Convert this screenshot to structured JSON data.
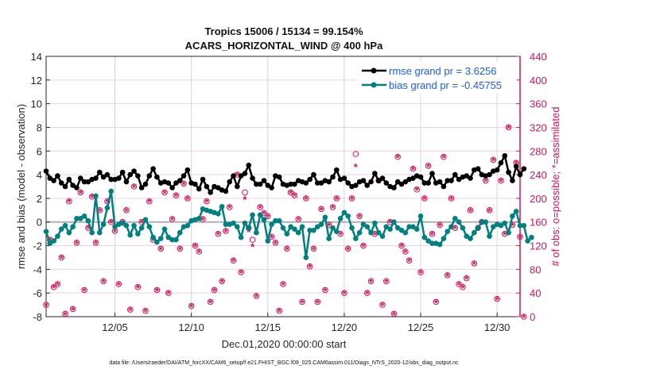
{
  "chart_data": {
    "type": "line",
    "title": [
      "Tropics 15006 / 15134 = 99.154%",
      "ACARS_HORIZONTAL_WIND @ 400 hPa"
    ],
    "xlabel": "Dec.01,2020 00:00:00 start",
    "ylabel": "rmse and bias (model - observation)",
    "y2label": "# of obs: o=possible; *=assimilated",
    "footnote": "data file: /Users/raeder/DAI/ATM_forcXX/CAM6_setup/f.e21.FHIST_BGC.f09_025.CAM6assim.011/Diags_NTrS_2020-12/obs_diag_output.nc",
    "xlim_days": [
      0,
      31
    ],
    "x_start_day": 0,
    "x_step_days": 0.25,
    "xticks": [
      {
        "day": 4.5,
        "label": "12/05"
      },
      {
        "day": 9.5,
        "label": "12/10"
      },
      {
        "day": 14.5,
        "label": "12/15"
      },
      {
        "day": 19.5,
        "label": "12/20"
      },
      {
        "day": 24.5,
        "label": "12/25"
      },
      {
        "day": 29.5,
        "label": "12/30"
      }
    ],
    "ylim": [
      -8,
      14
    ],
    "yticks": [
      -8,
      -6,
      -4,
      -2,
      0,
      2,
      4,
      6,
      8,
      10,
      12,
      14
    ],
    "y2lim": [
      0,
      440
    ],
    "y2ticks": [
      0,
      40,
      80,
      120,
      160,
      200,
      240,
      280,
      320,
      360,
      400,
      440
    ],
    "grid": true,
    "legend_placement": "top-right",
    "colors": {
      "rmse": "#000000",
      "bias": "#008080",
      "obs": "#d4145a",
      "legend_text": "#1a5cff",
      "zero_line": "#b0b0b0"
    },
    "series": [
      {
        "name": "rmse grand pr = 3.6256",
        "values": [
          4.3,
          3.7,
          3.5,
          3.9,
          3.3,
          3.0,
          3.6,
          3.1,
          2.9,
          3.7,
          3.4,
          3.4,
          3.6,
          3.7,
          4.2,
          3.8,
          4.0,
          3.6,
          3.6,
          3.7,
          4.2,
          3.4,
          4.0,
          4.3,
          3.9,
          2.9,
          3.2,
          3.9,
          4.5,
          3.8,
          3.3,
          3.4,
          3.3,
          2.9,
          3.3,
          3.5,
          3.9,
          4.4,
          3.3,
          3.2,
          2.8,
          3.6,
          3.0,
          2.5,
          3.0,
          2.9,
          2.7,
          2.6,
          3.4,
          3.9,
          3.0,
          3.9,
          4.1,
          4.8,
          3.7,
          3.2,
          3.2,
          3.5,
          3.1,
          2.9,
          3.9,
          3.8,
          3.2,
          3.1,
          3.2,
          3.2,
          3.5,
          3.4,
          3.3,
          3.6,
          4.0,
          3.3,
          3.3,
          3.5,
          3.4,
          3.8,
          4.4,
          3.6,
          3.7,
          3.3,
          3.0,
          3.1,
          3.4,
          3.5,
          3.1,
          3.4,
          4.1,
          3.5,
          3.7,
          3.3,
          3.0,
          2.9,
          3.4,
          3.2,
          3.4,
          3.6,
          3.7,
          3.9,
          3.8,
          3.3,
          3.3,
          4.1,
          3.3,
          3.4,
          3.0,
          3.5,
          3.5,
          4.0,
          3.6,
          3.8,
          3.9,
          3.7,
          4.4,
          4.5,
          4.0,
          3.9,
          4.0,
          4.3,
          4.4,
          5.0,
          5.6,
          4.2,
          3.5,
          4.7,
          4.0,
          4.5
        ]
      },
      {
        "name": "bias grand pr = -0.45755",
        "values": [
          -0.8,
          -1.8,
          -1.6,
          -1.2,
          -0.6,
          -0.3,
          -0.9,
          -0.4,
          0.3,
          0.3,
          0.5,
          0.1,
          -0.9,
          2.2,
          -0.9,
          -0.2,
          1.2,
          2.6,
          -0.4,
          -0.2,
          -0.1,
          -0.3,
          -1.1,
          -0.3,
          -1.0,
          -0.5,
          0.2,
          -0.4,
          -1.3,
          -1.7,
          -1.4,
          -0.6,
          -1.3,
          -1.5,
          -1.5,
          -0.9,
          -0.4,
          -0.3,
          0.1,
          0.2,
          0.3,
          1.1,
          1.0,
          0.9,
          0.8,
          0.7,
          1.3,
          -0.2,
          -0.2,
          -0.1,
          -0.4,
          -1.3,
          -0.1,
          -0.5,
          0.6,
          -0.9,
          0.6,
          0.2,
          -1.6,
          -0.2,
          0.1,
          0.1,
          -0.5,
          -1.0,
          -0.4,
          -0.6,
          -0.9,
          -0.4,
          -3.0,
          -0.7,
          -0.7,
          -0.4,
          -0.2,
          0.4,
          -1.4,
          -0.5,
          -0.8,
          0.3,
          0.8,
          0.5,
          -0.5,
          -1.4,
          -0.9,
          -0.2,
          -0.4,
          -0.9,
          -0.1,
          -0.9,
          -1.2,
          -0.4,
          -0.6,
          0.0,
          -0.5,
          -0.7,
          -0.9,
          -0.4,
          -0.4,
          -0.6,
          0.5,
          -1.3,
          -1.6,
          -1.8,
          -1.8,
          -1.9,
          -1.4,
          -0.8,
          -0.4,
          0.3,
          0.0,
          -0.5,
          -1.2,
          -1.4,
          -0.9,
          -0.5,
          0.0,
          0.0,
          -1.2,
          -0.4,
          -0.2,
          -0.3,
          -0.1,
          -0.9,
          0.5,
          0.9,
          -0.3,
          -0.3,
          -1.6,
          -1.3
        ]
      }
    ],
    "obs_assimilated": [
      20,
      130,
      50,
      55,
      100,
      5,
      195,
      13,
      125,
      210,
      45,
      150,
      203,
      125,
      180,
      60,
      195,
      160,
      145,
      55,
      160,
      180,
      12,
      220,
      50,
      160,
      10,
      195,
      130,
      45,
      115,
      210,
      40,
      165,
      205,
      115,
      225,
      200,
      18,
      120,
      110,
      165,
      195,
      25,
      45,
      140,
      60,
      145,
      185,
      95,
      240,
      75,
      200,
      145,
      120,
      35,
      185,
      175,
      170,
      135,
      125,
      10,
      55,
      115,
      210,
      205,
      165,
      25,
      200,
      85,
      115,
      25,
      182,
      45,
      155,
      185,
      200,
      140,
      40,
      115,
      200,
      255,
      170,
      120,
      40,
      60,
      140,
      230,
      20,
      60,
      160,
      5,
      270,
      120,
      110,
      95,
      250,
      215,
      75,
      200,
      255,
      140,
      25,
      155,
      270,
      70,
      200,
      150,
      55,
      50,
      65,
      180,
      90,
      150,
      160,
      230,
      180,
      265,
      30,
      230,
      140,
      320,
      155,
      260,
      135,
      0
    ],
    "obs_possible": [
      20,
      130,
      50,
      55,
      100,
      5,
      195,
      13,
      125,
      210,
      45,
      150,
      203,
      125,
      180,
      60,
      195,
      160,
      145,
      55,
      160,
      180,
      12,
      220,
      50,
      160,
      10,
      195,
      130,
      45,
      115,
      210,
      40,
      165,
      205,
      115,
      225,
      200,
      18,
      120,
      110,
      165,
      195,
      25,
      45,
      140,
      60,
      145,
      185,
      95,
      240,
      75,
      210,
      150,
      130,
      35,
      185,
      175,
      170,
      135,
      125,
      10,
      55,
      115,
      210,
      205,
      165,
      25,
      200,
      85,
      115,
      25,
      182,
      45,
      155,
      185,
      200,
      140,
      40,
      115,
      200,
      275,
      170,
      120,
      40,
      60,
      140,
      230,
      20,
      60,
      160,
      5,
      270,
      120,
      110,
      95,
      250,
      215,
      75,
      200,
      255,
      140,
      25,
      155,
      270,
      70,
      200,
      150,
      55,
      50,
      65,
      180,
      90,
      150,
      160,
      230,
      180,
      265,
      30,
      230,
      140,
      320,
      155,
      260,
      135,
      0
    ]
  }
}
